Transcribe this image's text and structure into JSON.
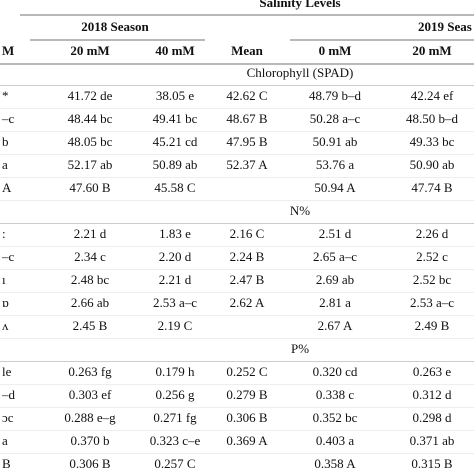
{
  "table": {
    "title": "Salinity Levels",
    "seasons": [
      "2018 Season",
      "2019 Seas"
    ],
    "columns": [
      "M",
      "20 mM",
      "40 mM",
      "Mean",
      "0 mM",
      "20 mM"
    ],
    "sections": [
      {
        "label": "Chlorophyll (SPAD)",
        "rows": [
          [
            "*",
            "41.72 de",
            "38.05 e",
            "42.62 C",
            "48.79 b–d",
            "42.24 ef"
          ],
          [
            "–c",
            "48.44 bc",
            "49.41 bc",
            "48.67 B",
            "50.28 a–c",
            "48.50 b–d"
          ],
          [
            "b",
            "48.05 bc",
            "45.21 cd",
            "47.95 B",
            "50.91 ab",
            "49.33 bc"
          ],
          [
            "a",
            "52.17 ab",
            "50.89 ab",
            "52.37 A",
            "53.76 a",
            "50.90 ab"
          ],
          [
            "A",
            "47.60 B",
            "45.58 C",
            null,
            "50.94 A",
            "47.74 B"
          ]
        ]
      },
      {
        "label": "N%",
        "rows": [
          [
            ":",
            "2.21 d",
            "1.83 e",
            "2.16 C",
            "2.51 d",
            "2.26 d"
          ],
          [
            "–c",
            "2.34 c",
            "2.20 d",
            "2.24 B",
            "2.65 a–c",
            "2.52 c"
          ],
          [
            "ı",
            "2.48 bc",
            "2.21 d",
            "2.47 B",
            "2.69 ab",
            "2.52 bc"
          ],
          [
            "ɒ",
            "2.66 ab",
            "2.53 a–c",
            "2.62 A",
            "2.81 a",
            "2.53 a–c"
          ],
          [
            "ʌ",
            "2.45 B",
            "2.19 C",
            null,
            "2.67 A",
            "2.49 B"
          ]
        ]
      },
      {
        "label": "P%",
        "rows": [
          [
            "le",
            "0.263 fg",
            "0.179 h",
            "0.252 C",
            "0.320 cd",
            "0.263 e"
          ],
          [
            "–d",
            "0.303 ef",
            "0.256 g",
            "0.279 B",
            "0.338 c",
            "0.312 d"
          ],
          [
            "ɔc",
            "0.288 e–g",
            "0.271 fg",
            "0.306 B",
            "0.352 bc",
            "0.298 d"
          ],
          [
            "a",
            "0.370 b",
            "0.323 c–e",
            "0.369 A",
            "0.403 a",
            "0.371 ab"
          ],
          [
            "B",
            "0.306 B",
            "0.257 C",
            null,
            "0.358 A",
            "0.315 B"
          ]
        ]
      }
    ]
  }
}
